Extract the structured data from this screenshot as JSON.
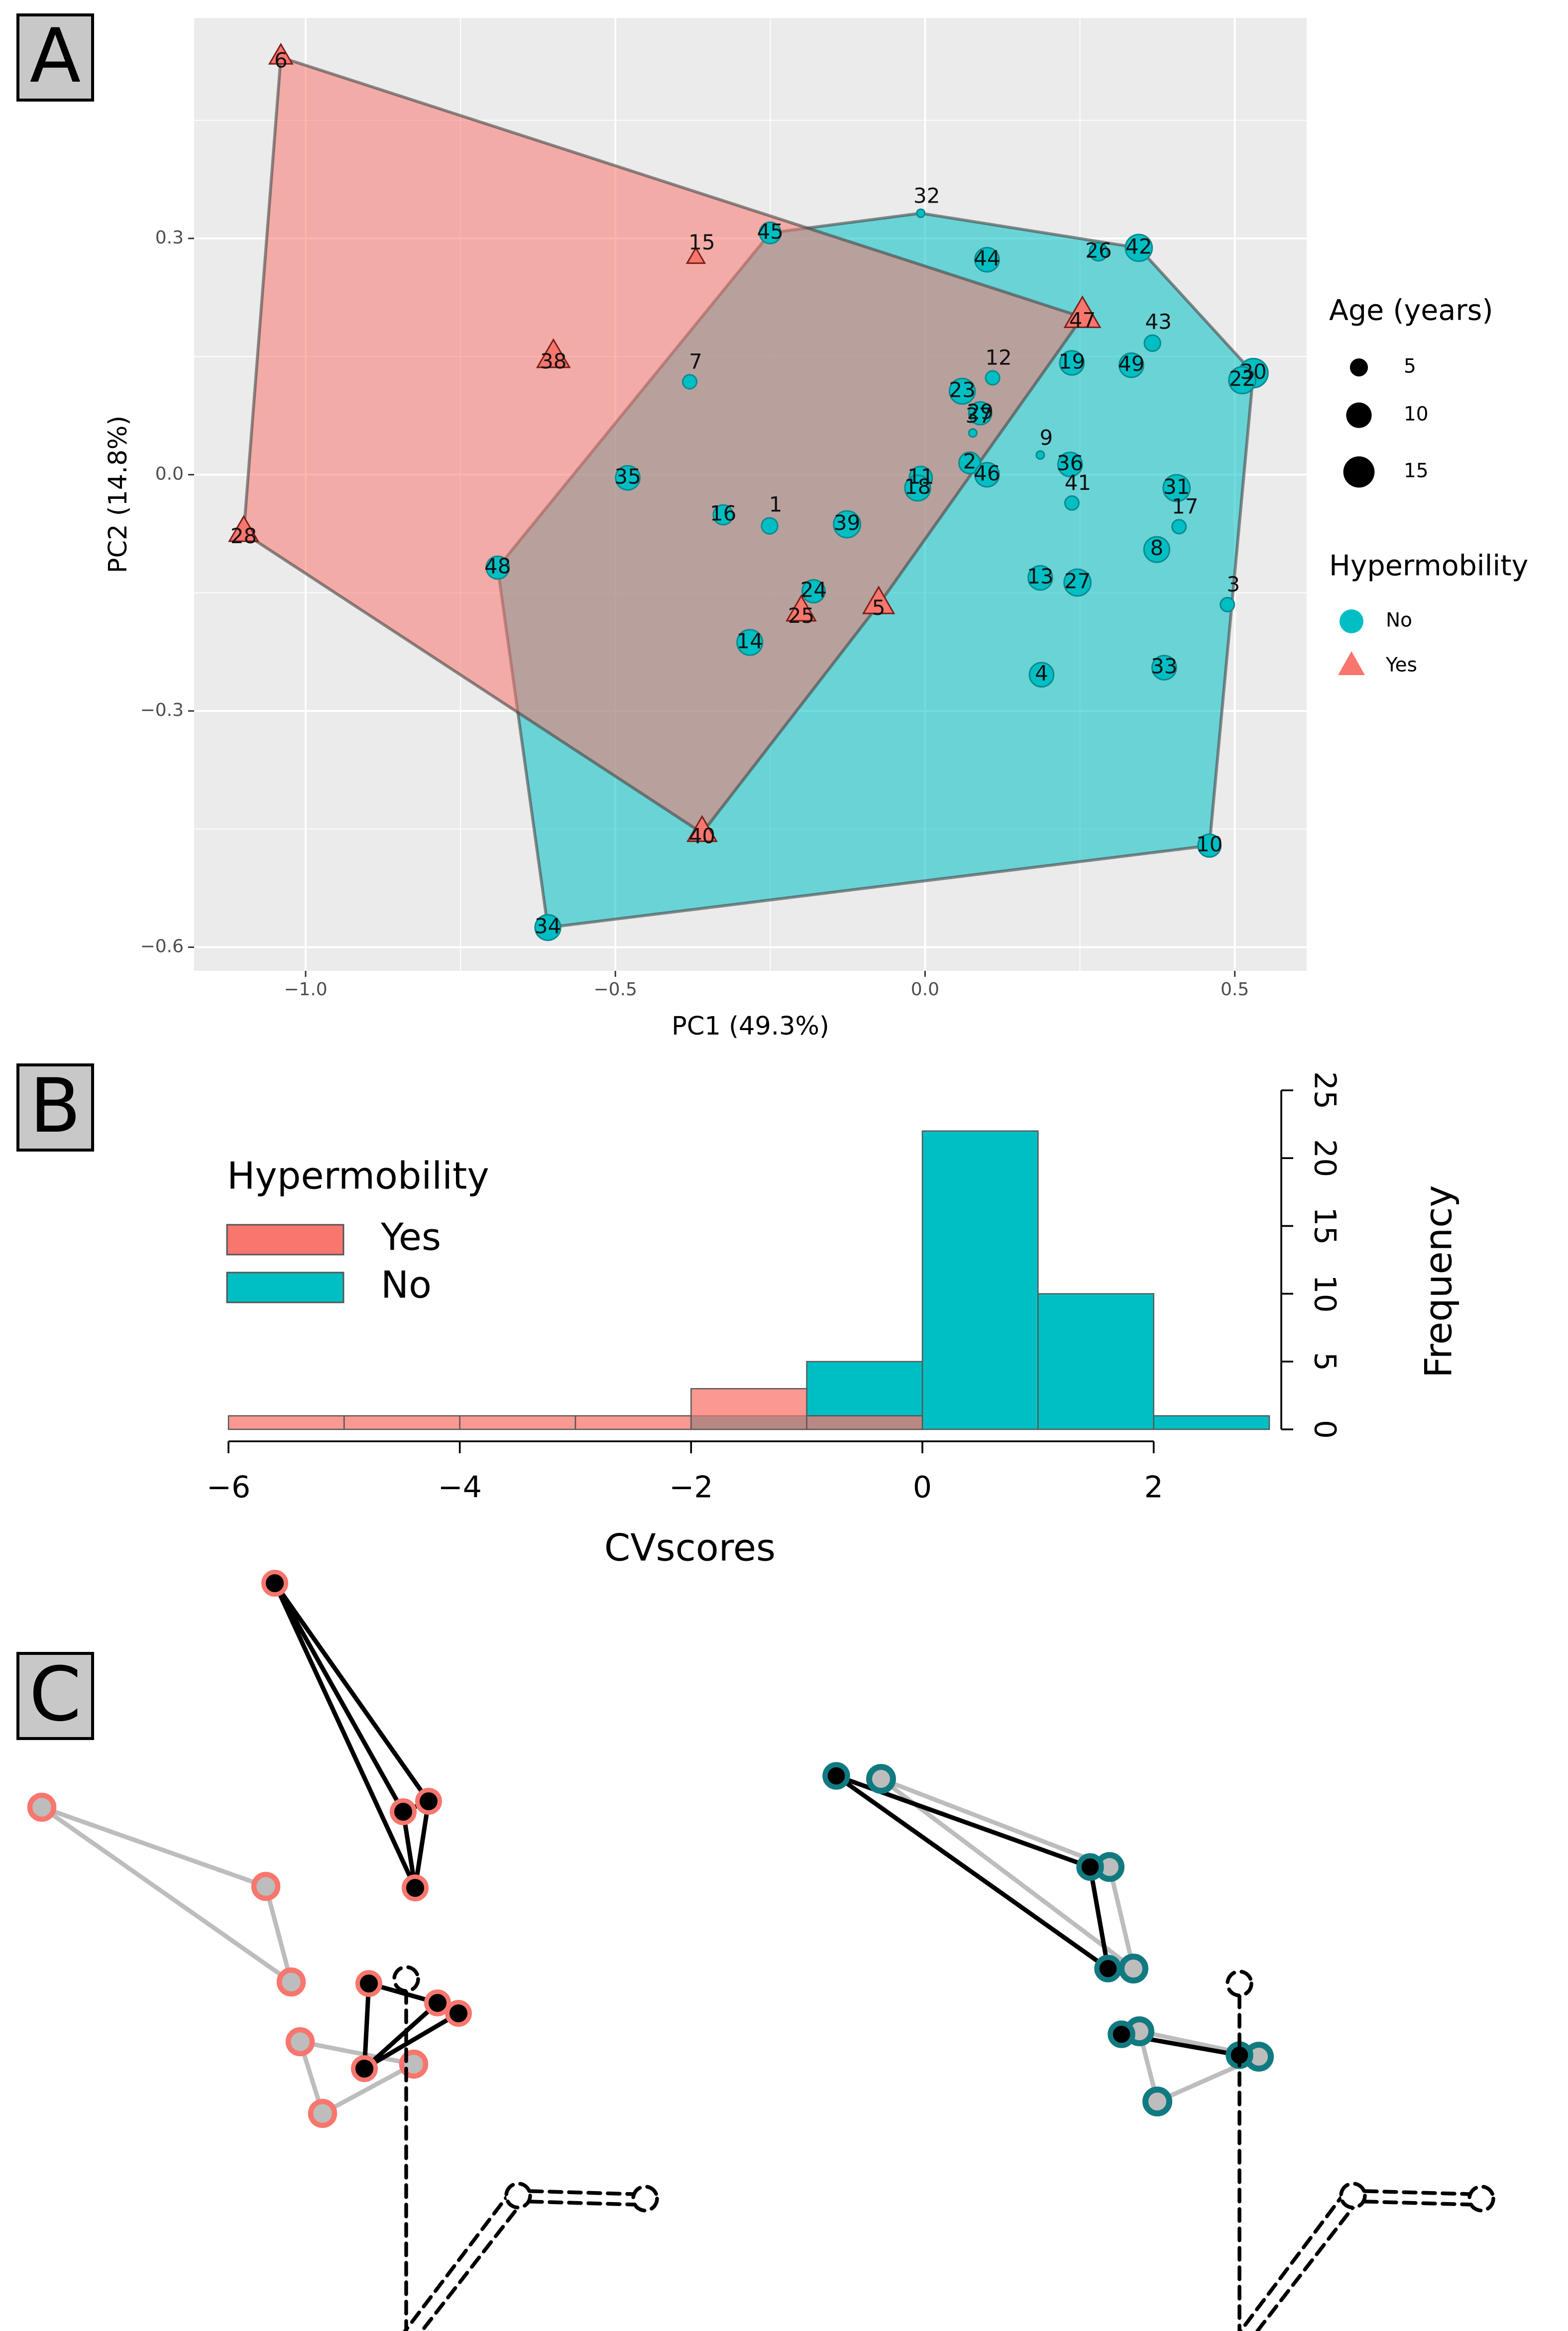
{
  "panel_labels": [
    "A",
    "B",
    "C"
  ],
  "chart_data": [
    {
      "type": "scatter",
      "x_label": "PC1 (49.3%)",
      "y_label": "PC2 (14.8%)",
      "xlim": [
        -1.18,
        0.616
      ],
      "ylim": [
        -0.63,
        0.58
      ],
      "xticks": [
        {
          "value": -1,
          "label": "−1.0"
        },
        {
          "value": -0.5,
          "label": "−0.5"
        },
        {
          "value": 0,
          "label": "0.0"
        },
        0.5
      ],
      "yticks": [
        {
          "value": -0.6,
          "label": "−0.6"
        },
        {
          "value": -0.3,
          "label": "−0.3"
        },
        {
          "value": 0,
          "label": "0.0"
        },
        0.3
      ],
      "grid": true,
      "hulls": true,
      "size_title": "Age (years)",
      "size_legend": [
        5,
        10,
        15
      ],
      "color_title": "Hypermobility",
      "series": [
        {
          "name": "No",
          "color": "#00bfc4",
          "marker": "circle",
          "labels": [
            "32",
            "45",
            "44",
            "26",
            "42",
            "43",
            "30",
            "22",
            "19",
            "49",
            "12",
            "23",
            "29",
            "37",
            "7",
            "2",
            "11",
            "18",
            "46",
            "9",
            "36",
            "41",
            "31",
            "17",
            "8",
            "3",
            "35",
            "16",
            "1",
            "39",
            "48",
            "24",
            "14",
            "13",
            "27",
            "4",
            "33",
            "10",
            "34"
          ],
          "x": [
            -0.007,
            -0.25,
            0.1,
            0.28,
            0.345,
            0.367,
            0.53,
            0.512,
            0.237,
            0.333,
            0.109,
            0.06,
            0.089,
            0.077,
            -0.38,
            0.072,
            -0.007,
            -0.012,
            0.1,
            0.186,
            0.234,
            0.237,
            0.406,
            0.41,
            0.374,
            0.488,
            -0.48,
            -0.326,
            -0.251,
            -0.126,
            -0.69,
            -0.18,
            -0.283,
            0.186,
            0.246,
            0.188,
            0.386,
            0.459,
            -0.609
          ],
          "values": [
            0.332,
            0.307,
            0.273,
            0.283,
            0.288,
            0.167,
            0.129,
            0.12,
            0.142,
            0.139,
            0.123,
            0.106,
            0.078,
            0.053,
            0.118,
            0.015,
            -0.004,
            -0.017,
            0.0,
            0.025,
            0.013,
            -0.036,
            -0.017,
            -0.066,
            -0.095,
            -0.165,
            -0.004,
            -0.051,
            -0.065,
            -0.063,
            -0.118,
            -0.148,
            -0.213,
            -0.131,
            -0.137,
            -0.254,
            -0.245,
            -0.471,
            -0.575
          ],
          "sizes": [
            1,
            7,
            9,
            5,
            11,
            4,
            13,
            11,
            9,
            9,
            3,
            10,
            8,
            1,
            3,
            7,
            8,
            10,
            9,
            1,
            9,
            3,
            11,
            3,
            10,
            3,
            9,
            6,
            4,
            11,
            8,
            8,
            10,
            9,
            11,
            9,
            9,
            8,
            10
          ]
        },
        {
          "name": "Yes",
          "color": "#f8766d",
          "marker": "triangle",
          "labels": [
            "6",
            "15",
            "38",
            "28",
            "40",
            "25",
            "5",
            "47"
          ],
          "x": [
            -1.04,
            -0.37,
            -0.6,
            -1.1,
            -0.36,
            -0.2,
            -0.075,
            0.254
          ],
          "values": [
            0.53,
            0.275,
            0.148,
            -0.074,
            -0.455,
            -0.175,
            -0.165,
            0.2
          ],
          "sizes": [
            5,
            3,
            10,
            8,
            8,
            8,
            9,
            12
          ]
        }
      ]
    },
    {
      "type": "histogram",
      "x_label": "CVscores",
      "y_label": "Frequency",
      "legend_title": "Hypermobility",
      "bins": [
        -6,
        -5,
        -4,
        -3,
        -2,
        -1,
        0,
        1,
        2,
        3
      ],
      "xlim": [
        -6,
        3
      ],
      "ylim": [
        0,
        25
      ],
      "xticks": [
        {
          "value": -6,
          "label": "−6"
        },
        {
          "value": -4,
          "label": "−4"
        },
        {
          "value": -2,
          "label": "−2"
        },
        0,
        2
      ],
      "yticks": [
        0,
        5,
        10,
        15,
        20,
        25
      ],
      "series": [
        {
          "name": "Yes",
          "color": "#f8766d",
          "values": [
            1,
            1,
            1,
            1,
            3,
            1,
            0,
            0,
            0
          ]
        },
        {
          "name": "No",
          "color": "#00bfc4",
          "values": [
            0,
            0,
            0,
            0,
            1,
            5,
            22,
            10,
            1
          ]
        }
      ]
    }
  ]
}
